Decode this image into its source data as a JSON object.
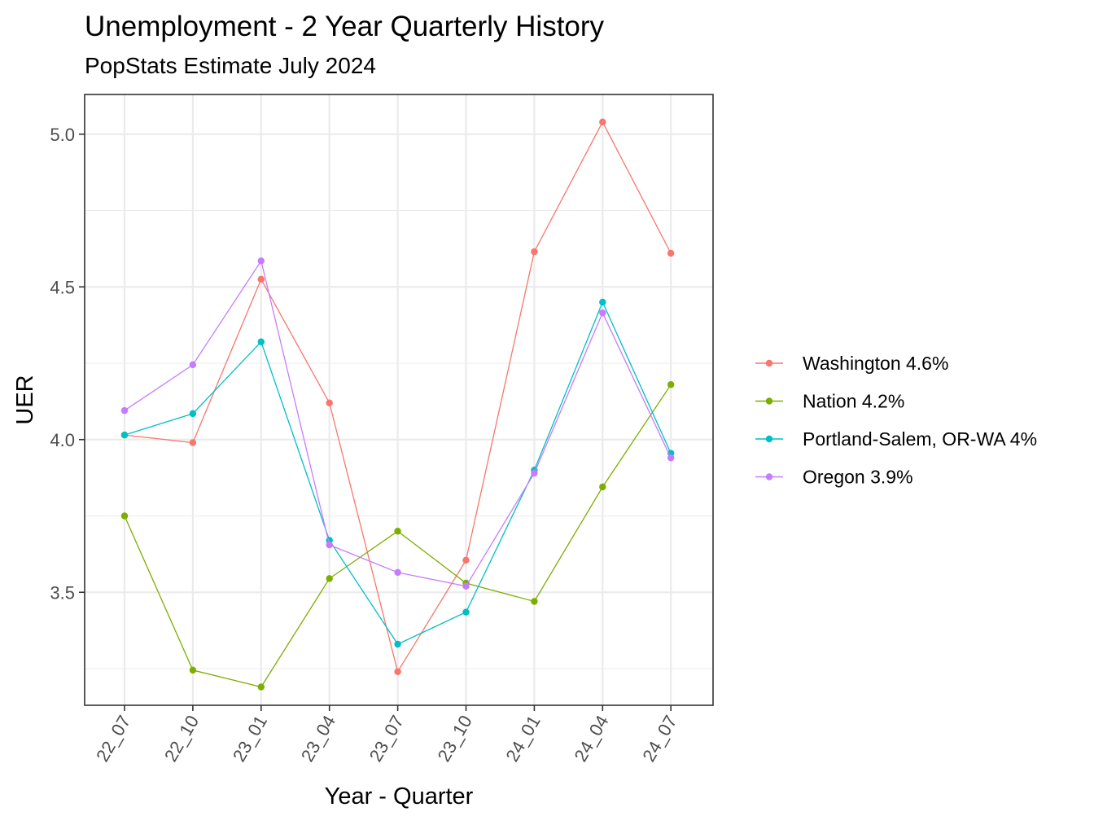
{
  "chart_data": {
    "type": "line",
    "title": "Unemployment - 2 Year Quarterly History",
    "subtitle": "PopStats Estimate July 2024",
    "xlabel": "Year - Quarter",
    "ylabel": "UER",
    "categories": [
      "22_07",
      "22_10",
      "23_01",
      "23_04",
      "23_07",
      "23_10",
      "24_01",
      "24_04",
      "24_07"
    ],
    "ylim": [
      3.13,
      5.13
    ],
    "yticks": [
      3.5,
      4.0,
      4.5,
      5.0
    ],
    "ytick_labels": [
      "3.5",
      "4.0",
      "4.5",
      "5.0"
    ],
    "grid": true,
    "legend_position": "right",
    "series": [
      {
        "name": "Washington 4.6%",
        "color": "#F8766D",
        "values": [
          4.015,
          3.99,
          4.525,
          4.12,
          3.24,
          3.605,
          4.615,
          5.04,
          4.61
        ]
      },
      {
        "name": "Nation 4.2%",
        "color": "#7CAE00",
        "values": [
          3.75,
          3.245,
          3.19,
          3.545,
          3.7,
          3.53,
          3.47,
          3.845,
          4.18
        ]
      },
      {
        "name": "Portland-Salem, OR-WA 4%",
        "color": "#00BFC4",
        "values": [
          4.015,
          4.085,
          4.32,
          3.67,
          3.33,
          3.435,
          3.9,
          4.45,
          3.955
        ]
      },
      {
        "name": "Oregon 3.9%",
        "color": "#C77CFF",
        "values": [
          4.095,
          4.245,
          4.585,
          3.655,
          3.565,
          3.52,
          3.89,
          4.415,
          3.94
        ]
      }
    ]
  }
}
